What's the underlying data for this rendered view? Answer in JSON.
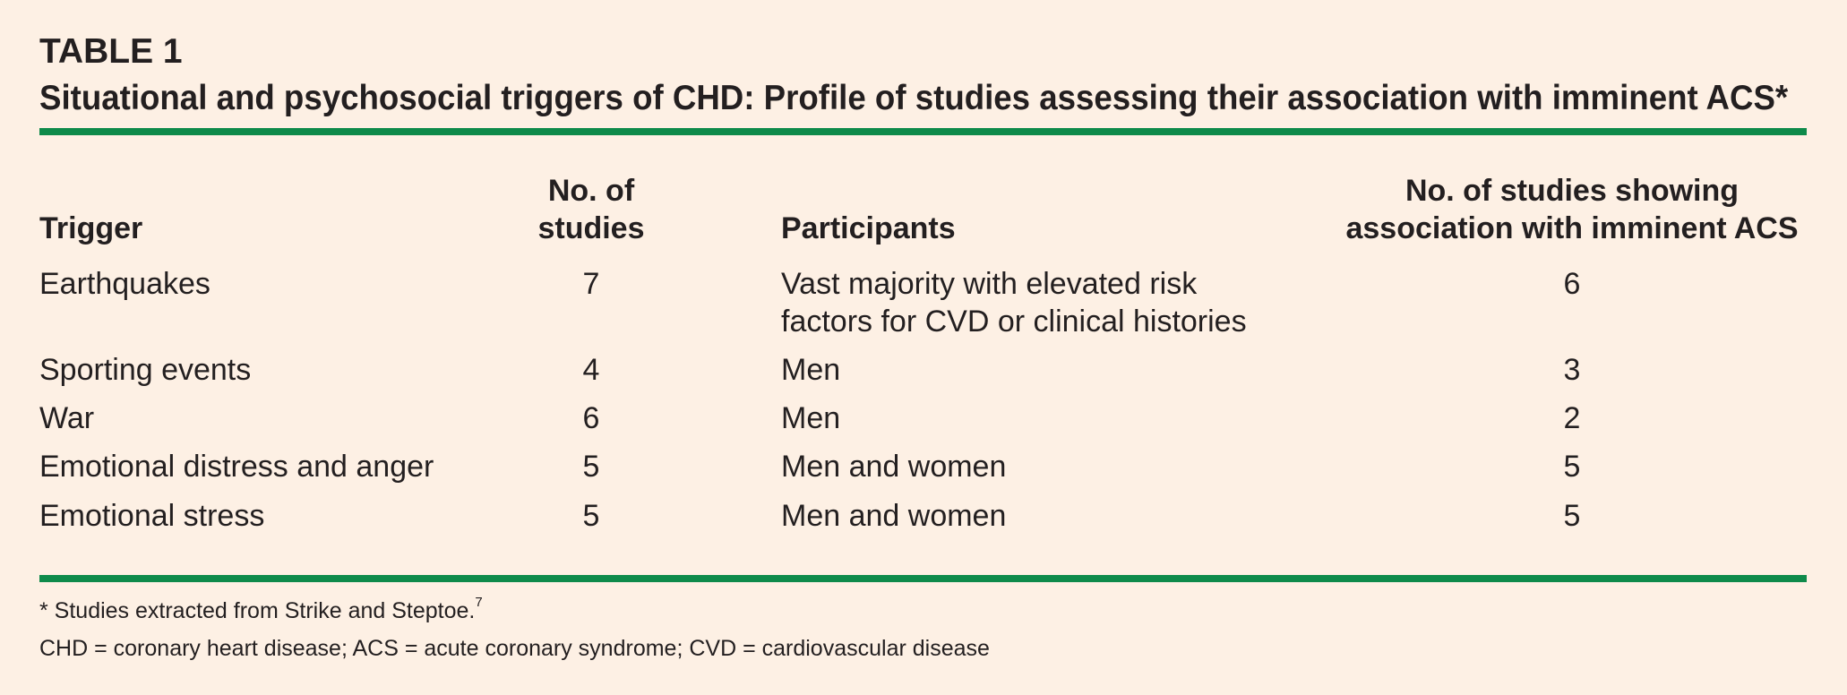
{
  "table": {
    "label": "TABLE 1",
    "caption": "Situational and psychosocial triggers of CHD: Profile of studies assessing their association with imminent ACS*",
    "headers": {
      "trigger": "Trigger",
      "num_studies_line1": "No. of",
      "num_studies_line2": "studies",
      "participants": "Participants",
      "assoc_line1": "No. of studies showing",
      "assoc_line2": "association with imminent ACS"
    },
    "rows": [
      {
        "trigger": "Earthquakes",
        "num": "7",
        "participants_line1": "Vast majority with elevated risk",
        "participants_line2": "factors for CVD or clinical histories",
        "assoc": "6"
      },
      {
        "trigger": "Sporting events",
        "num": "4",
        "participants_line1": "Men",
        "assoc": "3"
      },
      {
        "trigger": "War",
        "num": "6",
        "participants_line1": "Men",
        "assoc": "2"
      },
      {
        "trigger": "Emotional distress and anger",
        "num": "5",
        "participants_line1": "Men and women",
        "assoc": "5"
      },
      {
        "trigger": "Emotional stress",
        "num": "5",
        "participants_line1": "Men and women",
        "assoc": "5"
      }
    ],
    "footnotes": {
      "note1": "* Studies extracted from Strike and Steptoe.",
      "note1_ref": "7",
      "note2": "CHD = coronary heart disease; ACS = acute coronary syndrome; CVD = cardiovascular disease"
    }
  },
  "colors": {
    "background": "#fdf0e4",
    "rule": "#0e8a4a",
    "text": "#231f20"
  }
}
